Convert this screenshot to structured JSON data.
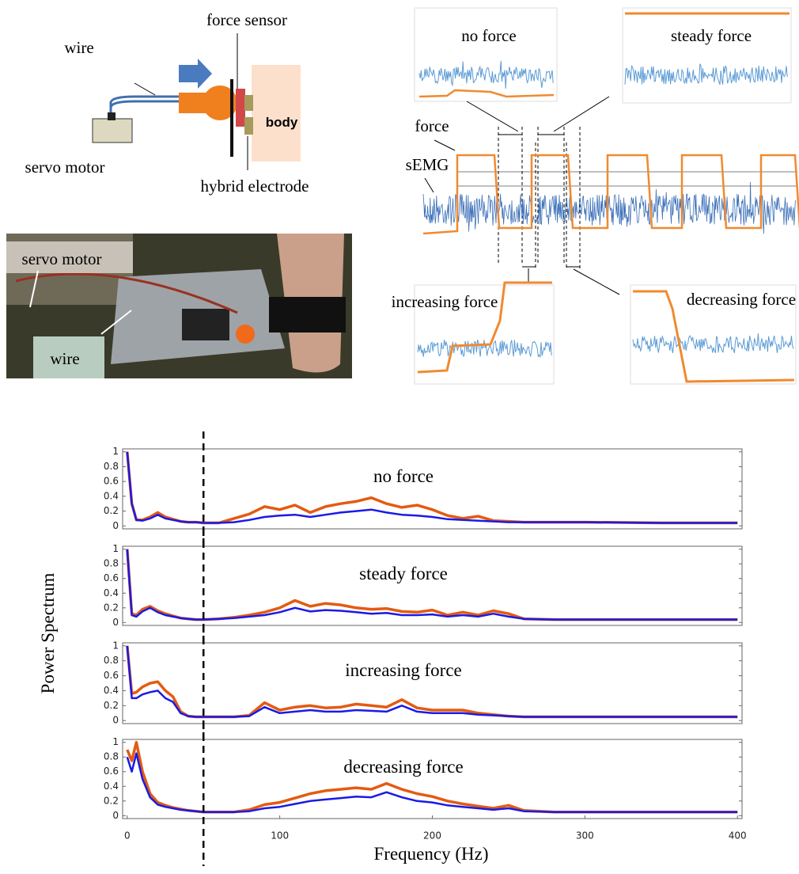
{
  "setup_diagram": {
    "force_sensor": "force sensor",
    "wire": "wire",
    "servo_motor": "servo motor",
    "hybrid_electrode": "hybrid electrode",
    "body": "body"
  },
  "photo": {
    "servo_motor": "servo motor",
    "wire": "wire"
  },
  "signals": {
    "force": "force",
    "semg": "sEMG",
    "insets": [
      "no force",
      "steady force",
      "increasing force",
      "decreasing force"
    ]
  },
  "chart_data": [
    {
      "type": "line",
      "title": "no force",
      "ylabel": "Power Spectrum",
      "xlim": [
        -3,
        403
      ],
      "ylim": [
        -0.04,
        1.04
      ],
      "yticks": [
        0,
        0.2,
        0.4,
        0.6,
        0.8,
        1
      ],
      "vline_x": 50,
      "x": [
        0,
        3,
        6,
        10,
        15,
        20,
        25,
        30,
        35,
        40,
        45,
        50,
        60,
        70,
        80,
        90,
        100,
        110,
        120,
        130,
        140,
        150,
        160,
        170,
        180,
        190,
        200,
        210,
        220,
        230,
        240,
        250,
        260,
        280,
        300,
        350,
        400
      ],
      "series": [
        {
          "color": "#e35b12",
          "values": [
            1,
            0.3,
            0.08,
            0.08,
            0.12,
            0.18,
            0.12,
            0.09,
            0.06,
            0.05,
            0.05,
            0.04,
            0.04,
            0.1,
            0.16,
            0.26,
            0.22,
            0.28,
            0.18,
            0.26,
            0.3,
            0.33,
            0.38,
            0.3,
            0.25,
            0.28,
            0.22,
            0.14,
            0.1,
            0.13,
            0.07,
            0.06,
            0.05,
            0.05,
            0.05,
            0.04,
            0.04
          ]
        },
        {
          "color": "#1a1ae6",
          "values": [
            1,
            0.3,
            0.08,
            0.07,
            0.1,
            0.15,
            0.1,
            0.08,
            0.06,
            0.05,
            0.05,
            0.04,
            0.04,
            0.05,
            0.08,
            0.12,
            0.14,
            0.15,
            0.12,
            0.15,
            0.18,
            0.2,
            0.22,
            0.18,
            0.15,
            0.14,
            0.12,
            0.09,
            0.08,
            0.07,
            0.06,
            0.05,
            0.05,
            0.05,
            0.05,
            0.04,
            0.04
          ]
        }
      ]
    },
    {
      "type": "line",
      "title": "steady force",
      "xlim": [
        -3,
        403
      ],
      "ylim": [
        -0.04,
        1.04
      ],
      "yticks": [
        0,
        0.2,
        0.4,
        0.6,
        0.8,
        1
      ],
      "vline_x": 50,
      "x": [
        0,
        3,
        6,
        10,
        15,
        20,
        25,
        30,
        35,
        40,
        45,
        50,
        60,
        70,
        80,
        90,
        100,
        110,
        120,
        130,
        140,
        150,
        160,
        170,
        180,
        190,
        200,
        210,
        220,
        230,
        240,
        250,
        260,
        280,
        300,
        350,
        400
      ],
      "series": [
        {
          "color": "#e35b12",
          "values": [
            1,
            0.12,
            0.1,
            0.18,
            0.22,
            0.16,
            0.12,
            0.09,
            0.06,
            0.05,
            0.04,
            0.04,
            0.05,
            0.07,
            0.1,
            0.14,
            0.2,
            0.3,
            0.22,
            0.26,
            0.24,
            0.2,
            0.18,
            0.19,
            0.15,
            0.14,
            0.17,
            0.1,
            0.14,
            0.1,
            0.16,
            0.12,
            0.05,
            0.04,
            0.04,
            0.04,
            0.04
          ]
        },
        {
          "color": "#1a1ae6",
          "values": [
            1,
            0.1,
            0.08,
            0.15,
            0.2,
            0.14,
            0.1,
            0.08,
            0.06,
            0.05,
            0.04,
            0.04,
            0.05,
            0.06,
            0.08,
            0.1,
            0.14,
            0.2,
            0.15,
            0.17,
            0.16,
            0.14,
            0.12,
            0.13,
            0.1,
            0.1,
            0.11,
            0.08,
            0.1,
            0.08,
            0.12,
            0.08,
            0.05,
            0.04,
            0.04,
            0.04,
            0.04
          ]
        }
      ]
    },
    {
      "type": "line",
      "title": "increasing force",
      "xlim": [
        -3,
        403
      ],
      "ylim": [
        -0.04,
        1.04
      ],
      "yticks": [
        0,
        0.2,
        0.4,
        0.6,
        0.8,
        1
      ],
      "vline_x": 50,
      "x": [
        0,
        3,
        6,
        10,
        15,
        20,
        25,
        30,
        35,
        40,
        45,
        50,
        60,
        70,
        80,
        90,
        100,
        110,
        120,
        130,
        140,
        150,
        160,
        170,
        180,
        190,
        200,
        210,
        220,
        230,
        240,
        250,
        260,
        280,
        300,
        350,
        400
      ],
      "series": [
        {
          "color": "#e35b12",
          "values": [
            1,
            0.36,
            0.38,
            0.45,
            0.5,
            0.52,
            0.4,
            0.32,
            0.12,
            0.06,
            0.05,
            0.05,
            0.05,
            0.05,
            0.07,
            0.24,
            0.14,
            0.18,
            0.2,
            0.17,
            0.18,
            0.22,
            0.2,
            0.18,
            0.28,
            0.17,
            0.14,
            0.14,
            0.14,
            0.1,
            0.08,
            0.06,
            0.05,
            0.05,
            0.05,
            0.05,
            0.05
          ]
        },
        {
          "color": "#1a1ae6",
          "values": [
            1,
            0.3,
            0.3,
            0.35,
            0.38,
            0.4,
            0.3,
            0.25,
            0.1,
            0.06,
            0.05,
            0.05,
            0.05,
            0.05,
            0.06,
            0.18,
            0.1,
            0.12,
            0.14,
            0.12,
            0.12,
            0.14,
            0.13,
            0.12,
            0.2,
            0.12,
            0.1,
            0.1,
            0.1,
            0.08,
            0.07,
            0.06,
            0.05,
            0.05,
            0.05,
            0.05,
            0.05
          ]
        }
      ]
    },
    {
      "type": "line",
      "title": "decreasing force",
      "xlabel": "Frequency (Hz)",
      "xlim": [
        -3,
        403
      ],
      "ylim": [
        -0.04,
        1.04
      ],
      "yticks": [
        0,
        0.2,
        0.4,
        0.6,
        0.8,
        1
      ],
      "xticks": [
        0,
        100,
        200,
        300,
        400
      ],
      "vline_x": 50,
      "x": [
        0,
        3,
        6,
        10,
        15,
        20,
        25,
        30,
        35,
        40,
        45,
        50,
        60,
        70,
        80,
        90,
        100,
        110,
        120,
        130,
        140,
        150,
        160,
        170,
        180,
        190,
        200,
        210,
        220,
        230,
        240,
        250,
        260,
        280,
        300,
        350,
        400
      ],
      "series": [
        {
          "color": "#e35b12",
          "values": [
            0.9,
            0.75,
            1,
            0.6,
            0.3,
            0.18,
            0.14,
            0.11,
            0.09,
            0.07,
            0.06,
            0.05,
            0.05,
            0.05,
            0.08,
            0.15,
            0.18,
            0.24,
            0.3,
            0.34,
            0.36,
            0.38,
            0.36,
            0.44,
            0.36,
            0.3,
            0.26,
            0.2,
            0.16,
            0.13,
            0.1,
            0.14,
            0.07,
            0.05,
            0.05,
            0.05,
            0.05
          ]
        },
        {
          "color": "#1a1ae6",
          "values": [
            0.8,
            0.6,
            0.85,
            0.5,
            0.25,
            0.15,
            0.12,
            0.1,
            0.08,
            0.07,
            0.06,
            0.05,
            0.05,
            0.05,
            0.06,
            0.1,
            0.12,
            0.16,
            0.2,
            0.22,
            0.24,
            0.26,
            0.25,
            0.32,
            0.25,
            0.2,
            0.18,
            0.14,
            0.12,
            0.1,
            0.08,
            0.1,
            0.06,
            0.05,
            0.05,
            0.05,
            0.05
          ]
        }
      ]
    }
  ]
}
